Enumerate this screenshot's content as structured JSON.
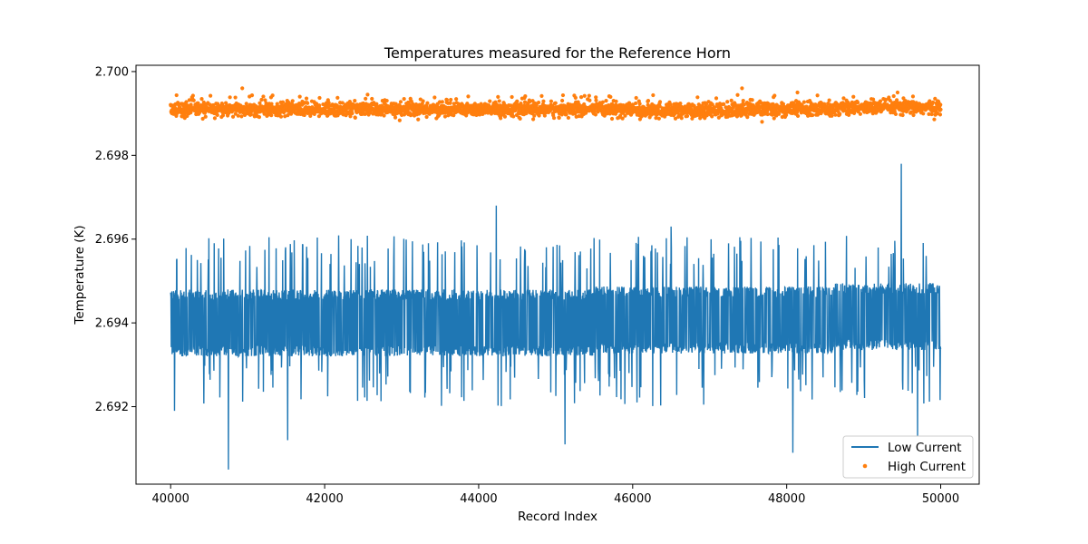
{
  "chart_data": {
    "type": "line",
    "title": "Temperatures measured for the Reference Horn",
    "xlabel": "Record Index",
    "ylabel": "Temperature (K)",
    "xlim": [
      39550,
      50500
    ],
    "ylim": [
      2.69015,
      2.70015
    ],
    "x_ticks": [
      40000,
      42000,
      44000,
      46000,
      48000,
      50000
    ],
    "x_tick_labels": [
      "40000",
      "42000",
      "44000",
      "46000",
      "48000",
      "50000"
    ],
    "y_ticks": [
      2.692,
      2.694,
      2.696,
      2.698,
      2.7
    ],
    "y_tick_labels": [
      "2.692",
      "2.694",
      "2.696",
      "2.698",
      "2.700"
    ],
    "grid": false,
    "legend_position": "lower-right",
    "series": [
      {
        "name": "Low Current",
        "style": "line",
        "color": "#1f77b4",
        "x_start": 40000,
        "x_end": 50000,
        "baseline": 2.694,
        "band_low": 2.6932,
        "band_high": 2.6948,
        "notable_points": [
          {
            "x": 40050,
            "y": 2.6919
          },
          {
            "x": 40750,
            "y": 2.6905
          },
          {
            "x": 41520,
            "y": 2.6912
          },
          {
            "x": 44230,
            "y": 2.6968
          },
          {
            "x": 45120,
            "y": 2.6911
          },
          {
            "x": 46500,
            "y": 2.6963
          },
          {
            "x": 48080,
            "y": 2.6909
          },
          {
            "x": 49100,
            "y": 2.6944
          },
          {
            "x": 49490,
            "y": 2.6978
          },
          {
            "x": 49700,
            "y": 2.6913
          }
        ]
      },
      {
        "name": "High Current",
        "style": "scatter",
        "color": "#ff7f0e",
        "x_start": 40000,
        "x_end": 50000,
        "baseline": 2.6991,
        "band_low": 2.6989,
        "band_high": 2.6993,
        "notable_points": [
          {
            "x": 40930,
            "y": 2.6996
          },
          {
            "x": 47420,
            "y": 2.6996
          },
          {
            "x": 47680,
            "y": 2.6988
          },
          {
            "x": 48140,
            "y": 2.6995
          },
          {
            "x": 49440,
            "y": 2.6995
          }
        ]
      }
    ]
  }
}
